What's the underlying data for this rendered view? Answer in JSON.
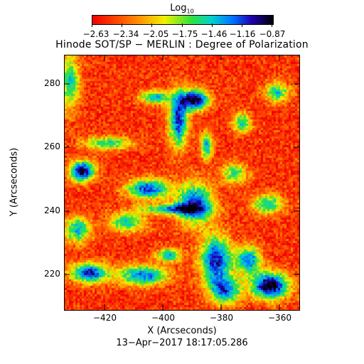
{
  "colorbar": {
    "label": "Log",
    "label_subscript": "10",
    "ticks": [
      "−2.63",
      "−2.34",
      "−2.05",
      "−1.75",
      "−1.46",
      "−1.16",
      "−0.87"
    ],
    "range": [
      -2.63,
      -0.87
    ],
    "colormap": [
      "#f00000",
      "#ff4a00",
      "#ffa000",
      "#f0f000",
      "#30e040",
      "#00d0d0",
      "#0070ff",
      "#2000b0",
      "#000000"
    ]
  },
  "title": "Hinode SOT/SP − MERLIN : Degree of Polarization",
  "x_axis": {
    "label": "X (Arcseconds)",
    "ticks": [
      "−420",
      "−400",
      "−380",
      "−360"
    ],
    "tick_values": [
      -420,
      -400,
      -380,
      -360
    ]
  },
  "y_axis": {
    "label": "Y (Arcseconds)",
    "ticks": [
      "220",
      "240",
      "260",
      "280"
    ],
    "tick_values": [
      220,
      240,
      260,
      280
    ]
  },
  "timestamp": "13−Apr−2017 18:17:05.286"
}
